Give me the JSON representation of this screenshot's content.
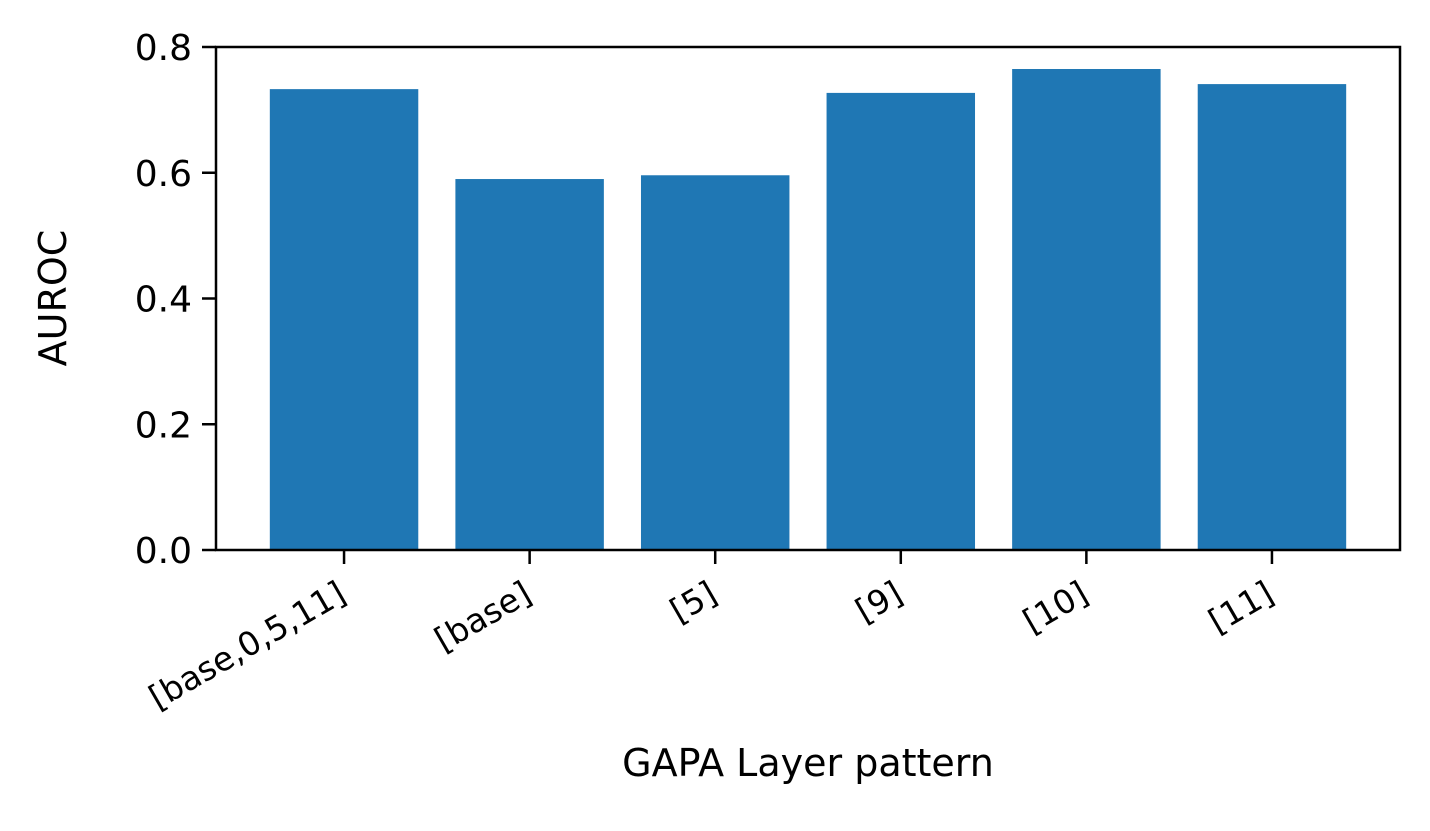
{
  "chart_data": {
    "type": "bar",
    "title": "",
    "xlabel": "GAPA Layer pattern",
    "ylabel": "AUROC",
    "categories": [
      "[base,0,5,11]",
      "[base]",
      "[5]",
      "[9]",
      "[10]",
      "[11]"
    ],
    "values": [
      0.733,
      0.59,
      0.596,
      0.727,
      0.765,
      0.741
    ],
    "ylim": [
      0,
      0.8
    ],
    "yticks": [
      "0.0",
      "0.2",
      "0.4",
      "0.6",
      "0.8"
    ],
    "grid": false,
    "legend": null,
    "bar_color": "#1f77b4"
  }
}
